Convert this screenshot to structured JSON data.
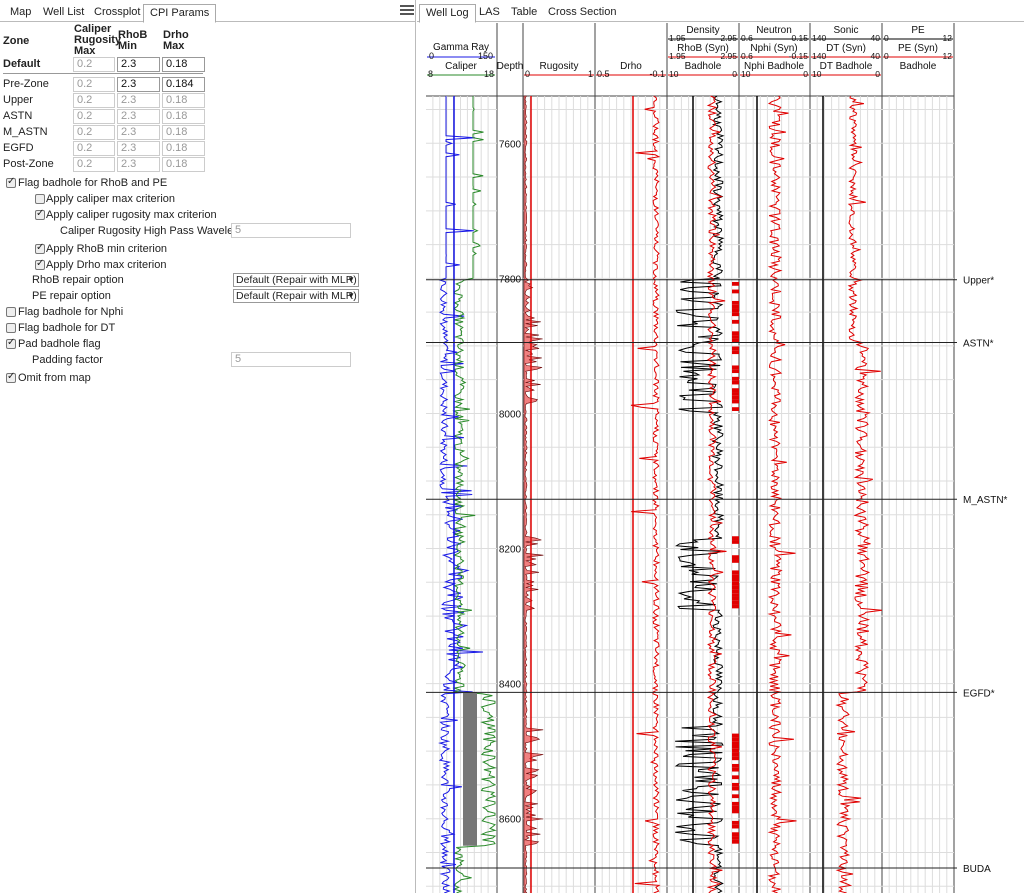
{
  "left_tabs": [
    {
      "label": "Map",
      "active": false
    },
    {
      "label": "Well List",
      "active": false
    },
    {
      "label": "Crossplot",
      "active": false
    },
    {
      "label": "CPI Params",
      "active": true
    }
  ],
  "right_tabs": [
    {
      "label": "Well Log",
      "active": true
    },
    {
      "label": "LAS",
      "active": false
    },
    {
      "label": "Table",
      "active": false
    },
    {
      "label": "Cross Section",
      "active": false
    }
  ],
  "table_headers": {
    "zone": "Zone",
    "caliper": [
      "Caliper",
      "Rugosity",
      "Max"
    ],
    "rhob": [
      "RhoB",
      "Min"
    ],
    "drho": [
      "Drho",
      "Max"
    ]
  },
  "zones": [
    {
      "name": "Default",
      "caliper": "0.2",
      "rhob": "2.3",
      "drho": "0.18",
      "bold": true
    },
    {
      "name": "Pre-Zone",
      "caliper": "0.2",
      "rhob": "2.3",
      "drho": "0.184"
    },
    {
      "name": "Upper",
      "caliper": "0.2",
      "rhob": "2.3",
      "drho": "0.18"
    },
    {
      "name": "ASTN",
      "caliper": "0.2",
      "rhob": "2.3",
      "drho": "0.18"
    },
    {
      "name": "M_ASTN",
      "caliper": "0.2",
      "rhob": "2.3",
      "drho": "0.18"
    },
    {
      "name": "EGFD",
      "caliper": "0.2",
      "rhob": "2.3",
      "drho": "0.18"
    },
    {
      "name": "Post-Zone",
      "caliper": "0.2",
      "rhob": "2.3",
      "drho": "0.18"
    }
  ],
  "options": {
    "flag_rhob_pe": "Flag badhole for RhoB and PE",
    "apply_caliper_max": "Apply caliper max criterion",
    "apply_caliper_rug": "Apply caliper rugosity max criterion",
    "rug_wavelength_label": "Caliper Rugosity High Pass Wavelength",
    "rug_wavelength_value": "5",
    "apply_rhob_min": "Apply RhoB min criterion",
    "apply_drho_max": "Apply Drho max criterion",
    "rhob_repair_label": "RhoB repair option",
    "rhob_repair_value": "Default (Repair with MLR)",
    "pe_repair_label": "PE repair option",
    "pe_repair_value": "Default (Repair with MLR)",
    "flag_nphi": "Flag badhole for Nphi",
    "flag_dt": "Flag badhole for DT",
    "pad_badhole": "Pad badhole flag",
    "padding_label": "Padding factor",
    "padding_value": "5",
    "omit_map": "Omit from map"
  },
  "checks": {
    "flag_rhob_pe": true,
    "apply_caliper_max": false,
    "apply_caliper_rug": true,
    "apply_rhob_min": true,
    "apply_drho_max": true,
    "flag_nphi": false,
    "flag_dt": false,
    "pad_badhole": true,
    "omit_map": true
  },
  "well_log": {
    "headers": {
      "gr_title": "Gamma Ray",
      "gr_min": "0",
      "gr_max": "150",
      "cal_title": "Caliper",
      "cal_min": "8",
      "cal_max": "18",
      "depth": "Depth",
      "rug_title": "Rugosity",
      "rug_min": "0",
      "rug_max": "1",
      "drho_title": "Drho",
      "drho_min": "0.5",
      "drho_max": "-0.1",
      "den_title": "Density",
      "den_min": "1.95",
      "den_max": "2.95",
      "rhob_syn": "RhoB (Syn)",
      "rhob_syn_min": "1.95",
      "rhob_syn_max": "2.95",
      "badhole": "Badhole",
      "bh_min": "10",
      "bh_max": "0",
      "neu_title": "Neutron",
      "neu_min": "0.6",
      "neu_max": "-0.15",
      "nphi_syn": "Nphi (Syn)",
      "nphi_syn_min": "0.6",
      "nphi_syn_max": "-0.15",
      "nphi_badhole": "Nphi Badhole",
      "nbh_min": "10",
      "nbh_max": "0",
      "sonic_title": "Sonic",
      "sonic_min": "140",
      "sonic_max": "40",
      "dt_syn": "DT (Syn)",
      "dt_syn_min": "140",
      "dt_syn_max": "40",
      "dt_badhole": "DT Badhole",
      "dtbh_min": "10",
      "dtbh_max": "0",
      "pe_title": "PE",
      "pe_min": "0",
      "pe_max": "12",
      "pe_syn": "PE (Syn)",
      "pe_syn_min": "0",
      "pe_syn_max": "12",
      "pe_badhole": "Badhole"
    },
    "depth_range": [
      7530,
      8710
    ],
    "depth_ticks": [
      "7600",
      "7800",
      "8000",
      "8200",
      "8400",
      "8600"
    ],
    "markers": [
      {
        "name": "Upper*",
        "depth": 7802
      },
      {
        "name": "ASTN*",
        "depth": 7895
      },
      {
        "name": "M_ASTN*",
        "depth": 8127
      },
      {
        "name": "EGFD*",
        "depth": 8413
      },
      {
        "name": "BUDA",
        "depth": 8673
      }
    ],
    "colors": {
      "gr": "#1a1ae6",
      "caliper": "#2a8a2a",
      "curve": "#e00000",
      "fill": "#f08080",
      "black": "#000000",
      "bitsize": "#1010e0"
    }
  }
}
